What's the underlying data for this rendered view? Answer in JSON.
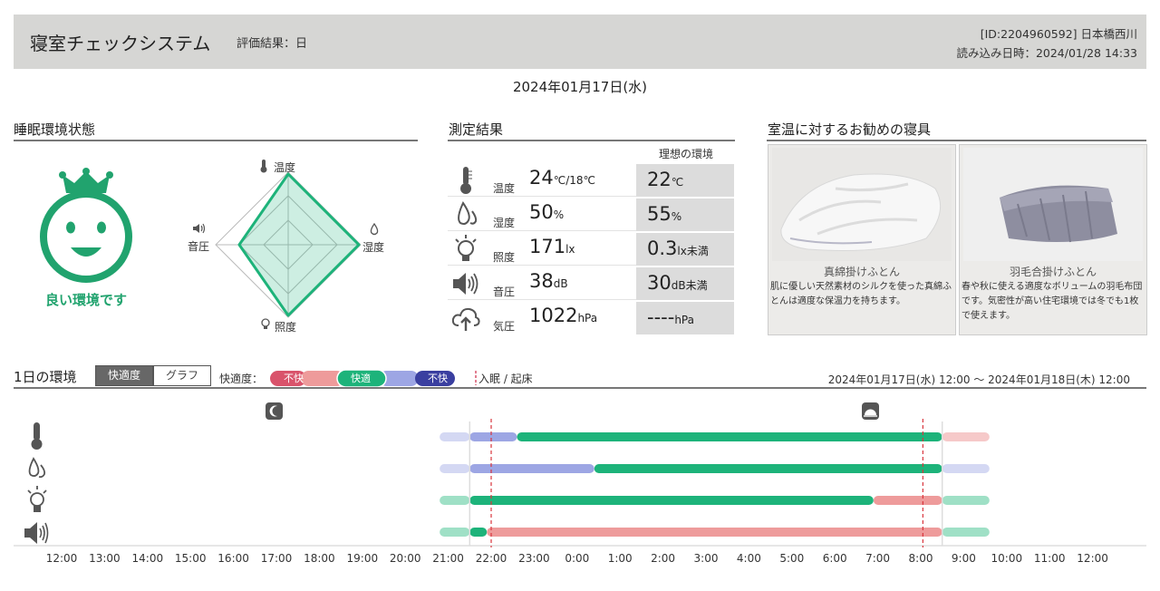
{
  "header": {
    "title": "寝室チェックシステム",
    "evaluation": "評価結果：日",
    "id_line": "[ID:2204960592] 日本橋西川",
    "load_line": "読み込み日時：2024/01/28 14:33"
  },
  "date": "2024年01月17日(水)",
  "sleep_state": {
    "title": "睡眠環境状態",
    "status_text": "良い環境です",
    "radar_labels": {
      "temp": "温度",
      "humidity": "湿度",
      "light": "照度",
      "sound": "音圧"
    }
  },
  "measurement": {
    "title": "測定結果",
    "ideal_header": "理想の環境",
    "rows": [
      {
        "name": "温度",
        "value": "24",
        "unit": "℃/18℃",
        "ideal": "22",
        "ideal_unit": "℃",
        "icon": "thermometer-icon"
      },
      {
        "name": "湿度",
        "value": "50",
        "unit": "%",
        "ideal": "55",
        "ideal_unit": "%",
        "icon": "humidity-drop-icon"
      },
      {
        "name": "照度",
        "value": "171",
        "unit": "lx",
        "ideal": "0.3",
        "ideal_unit": "lx未満",
        "icon": "light-bulb-icon"
      },
      {
        "name": "音圧",
        "value": "38",
        "unit": "dB",
        "ideal": "30",
        "ideal_unit": "dB未満",
        "icon": "speaker-icon"
      },
      {
        "name": "気圧",
        "value": "1022",
        "unit": "hPa",
        "ideal": "----",
        "ideal_unit": "hPa",
        "icon": "cloud-pressure-icon"
      }
    ]
  },
  "bedding": {
    "title": "室温に対するお勧めの寝具",
    "items": [
      {
        "name": "真綿掛けふとん",
        "desc": "肌に優しい天然素材のシルクを使った真綿ふとんは適度な保温力を持ちます。"
      },
      {
        "name": "羽毛合掛けふとん",
        "desc": "春や秋に使える適度なボリュームの羽毛布団です。気密性が高い住宅環境では冬でも1枚で使えます。"
      }
    ]
  },
  "day_env": {
    "title": "1日の環境",
    "tabs": [
      "快適度",
      "グラフ"
    ],
    "comfort_label": "快適度：",
    "legend": {
      "bad": "不快",
      "good": "快適"
    },
    "sleep_legend": "入眠 / 起床",
    "range": "2024年01月17日(水) 12:00 〜 2024年01月18日(木) 12:00",
    "hours": [
      "12:00",
      "13:00",
      "14:00",
      "15:00",
      "16:00",
      "17:00",
      "18:00",
      "19:00",
      "20:00",
      "21:00",
      "22:00",
      "23:00",
      "0:00",
      "1:00",
      "2:00",
      "3:00",
      "4:00",
      "5:00",
      "6:00",
      "7:00",
      "8:00",
      "9:00",
      "10:00",
      "11:00",
      "12:00"
    ]
  },
  "colors": {
    "green": "#1db37a",
    "light_green": "#9fe0c6",
    "red": "#ee9b9b",
    "light_red": "#f6c9c9",
    "blue": "#9da6e4",
    "light_blue": "#d4d8f3",
    "dark_red": "#d9536b",
    "dark_blue": "#3a3fa0"
  }
}
